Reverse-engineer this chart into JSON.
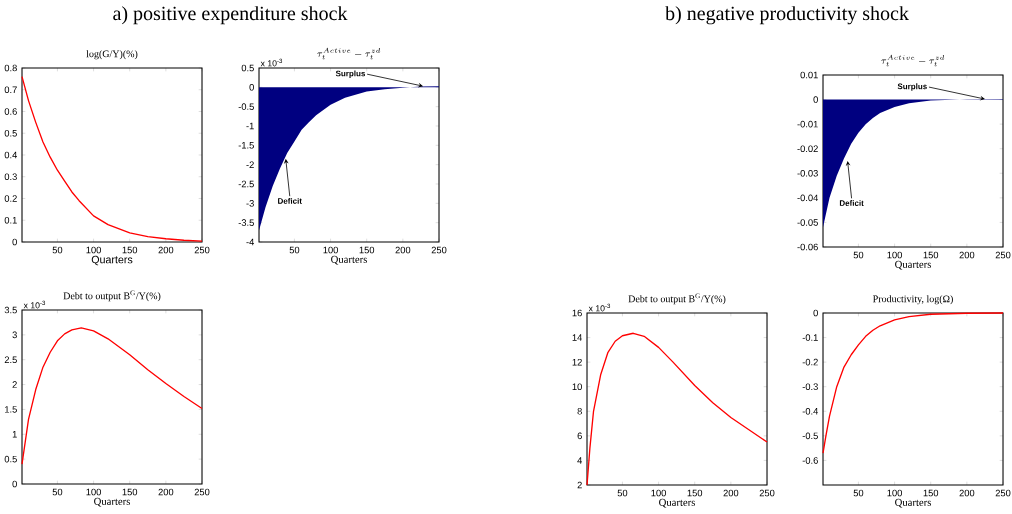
{
  "chart_data": [
    {
      "type": "line",
      "title": "log(G/Y)(%)",
      "xlabel": "Quarters",
      "annotations": [
        "a) positive expenditure shock"
      ],
      "x": [
        1,
        10,
        20,
        30,
        40,
        50,
        60,
        70,
        80,
        100,
        120,
        150,
        175,
        200,
        225,
        250
      ],
      "values": [
        0.76,
        0.65,
        0.55,
        0.46,
        0.39,
        0.33,
        0.28,
        0.23,
        0.19,
        0.12,
        0.08,
        0.042,
        0.025,
        0.015,
        0.008,
        0.004
      ],
      "color": "#ff0000",
      "xlim": [
        1,
        250
      ],
      "ylim": [
        0,
        0.8
      ],
      "xticks": [
        50,
        100,
        150,
        200,
        250
      ],
      "yticks": [
        0,
        0.1,
        0.2,
        0.3,
        0.4,
        0.5,
        0.6,
        0.7,
        0.8
      ]
    },
    {
      "type": "area",
      "title": "\\tau_t^{Active}-\\tau_t^{zd}",
      "xlabel": "Quarters",
      "annotations": [
        "x 10$^{-3}$",
        {
          "text": "Surplus",
          "x": 228,
          "y": 0.03
        },
        {
          "text": "Deficit",
          "x": 38,
          "y": -1.85
        }
      ],
      "x": [
        1,
        10,
        20,
        30,
        40,
        50,
        60,
        70,
        80,
        100,
        120,
        150,
        175,
        200,
        225,
        250
      ],
      "values": [
        -3.7,
        -3.1,
        -2.55,
        -2.1,
        -1.7,
        -1.4,
        -1.1,
        -0.9,
        -0.72,
        -0.45,
        -0.27,
        -0.11,
        -0.05,
        -0.01,
        0.02,
        0.03
      ],
      "color": "#000080",
      "xlim": [
        1,
        250
      ],
      "ylim": [
        -4,
        0.5
      ],
      "xticks": [
        50,
        100,
        150,
        200,
        250
      ],
      "yticks": [
        -4,
        -3.5,
        -3,
        -2.5,
        -2,
        -1.5,
        -1,
        -0.5,
        0,
        0.5
      ]
    },
    {
      "type": "area",
      "title": "\\tau_t^{Active}-\\tau_t^{zd}",
      "xlabel": "Quarters",
      "annotations": [
        "b) negative productivity shock",
        {
          "text": "Surplus",
          "x": 225,
          "y": 0.0002
        },
        {
          "text": "Deficit",
          "x": 35,
          "y": -0.025
        }
      ],
      "x": [
        1,
        10,
        20,
        30,
        40,
        50,
        60,
        70,
        80,
        100,
        120,
        150,
        200,
        250
      ],
      "values": [
        -0.052,
        -0.04,
        -0.031,
        -0.024,
        -0.018,
        -0.0135,
        -0.01,
        -0.0075,
        -0.0055,
        -0.003,
        -0.0015,
        -0.0004,
        0.0001,
        0.0002
      ],
      "color": "#000080",
      "xlim": [
        1,
        250
      ],
      "ylim": [
        -0.06,
        0.01
      ],
      "xticks": [
        50,
        100,
        150,
        200,
        250
      ],
      "yticks": [
        -0.06,
        -0.05,
        -0.04,
        -0.03,
        -0.02,
        -0.01,
        0,
        0.01
      ]
    },
    {
      "type": "line",
      "title": "Debt to output B$^{G}$/Y(%)",
      "xlabel": "Quarters",
      "annotations": [
        "x 10$^{-3}$"
      ],
      "x": [
        1,
        10,
        20,
        30,
        40,
        50,
        60,
        70,
        83,
        100,
        120,
        150,
        175,
        200,
        225,
        250
      ],
      "values": [
        0.4,
        1.3,
        1.9,
        2.35,
        2.65,
        2.88,
        3.02,
        3.1,
        3.14,
        3.08,
        2.92,
        2.6,
        2.3,
        2.02,
        1.76,
        1.52
      ],
      "color": "#ff0000",
      "xlim": [
        1,
        250
      ],
      "ylim": [
        0,
        3.5
      ],
      "xticks": [
        50,
        100,
        150,
        200,
        250
      ],
      "yticks": [
        0,
        0.5,
        1,
        1.5,
        2,
        2.5,
        3,
        3.5
      ]
    },
    {
      "type": "line",
      "title": "Debt to output B$^{G}$/Y(%)",
      "xlabel": "Quarters",
      "annotations": [
        "x 10$^{-3}$"
      ],
      "x": [
        1,
        5,
        10,
        20,
        30,
        40,
        50,
        65,
        80,
        100,
        120,
        150,
        175,
        200,
        225,
        250
      ],
      "values": [
        2,
        5,
        8,
        11,
        12.8,
        13.7,
        14.15,
        14.35,
        14.1,
        13.2,
        12,
        10.1,
        8.7,
        7.5,
        6.5,
        5.5
      ],
      "color": "#ff0000",
      "xlim": [
        1,
        250
      ],
      "ylim": [
        2,
        16
      ],
      "xticks": [
        50,
        100,
        150,
        200,
        250
      ],
      "yticks": [
        2,
        4,
        6,
        8,
        10,
        12,
        14,
        16
      ]
    },
    {
      "type": "line",
      "title": "Productivity, log(Ω)",
      "xlabel": "Quarters",
      "x": [
        1,
        5,
        10,
        20,
        30,
        40,
        50,
        60,
        70,
        80,
        100,
        120,
        150,
        200,
        250
      ],
      "values": [
        -0.57,
        -0.5,
        -0.42,
        -0.3,
        -0.22,
        -0.17,
        -0.13,
        -0.095,
        -0.07,
        -0.052,
        -0.028,
        -0.015,
        -0.005,
        -0.001,
        0
      ],
      "color": "#ff0000",
      "xlim": [
        1,
        250
      ],
      "ylim": [
        -0.7,
        0
      ],
      "xticks": [
        50,
        100,
        150,
        200,
        250
      ],
      "yticks": [
        -0.6,
        -0.5,
        -0.4,
        -0.3,
        -0.2,
        -0.1,
        0
      ]
    }
  ]
}
